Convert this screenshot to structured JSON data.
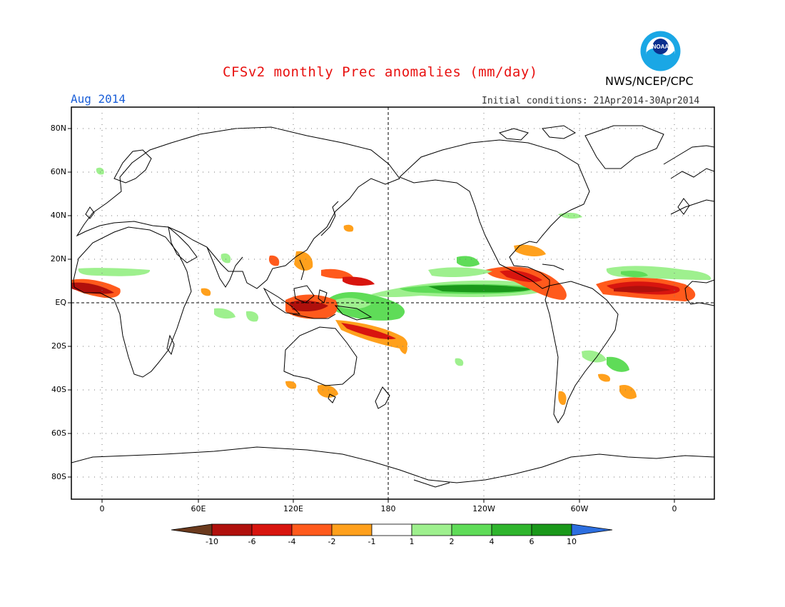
{
  "header": {
    "title": "CFSv2 monthly Prec anomalies (mm/day)",
    "agency": "NWS/NCEP/CPC",
    "logo_text": "NOAA",
    "month": "Aug 2014",
    "initial_conditions": "Initial conditions: 21Apr2014-30Apr2014"
  },
  "axes": {
    "lat_labels": [
      "80N",
      "60N",
      "40N",
      "20N",
      "EQ",
      "20S",
      "40S",
      "60S",
      "80S"
    ],
    "lon_labels": [
      "0",
      "60E",
      "120E",
      "180",
      "120W",
      "60W",
      "0"
    ]
  },
  "colorbar": {
    "labels": [
      "-10",
      "-6",
      "-4",
      "-2",
      "-1",
      "1",
      "2",
      "4",
      "6",
      "10"
    ],
    "colors": [
      "#6b3a1d",
      "#b0100c",
      "#d8150f",
      "#ff5a1c",
      "#ffa01c",
      "#ffffff",
      "#9ef08e",
      "#5fdc58",
      "#2fb52d",
      "#1a981a",
      "#2d6fe0"
    ]
  },
  "map": {
    "projection": "cylindrical equidistant",
    "lon_range": [
      -20,
      380
    ],
    "lat_range": [
      -90,
      90
    ],
    "grid": "dotted, every 20° lat / 60° lon",
    "dashed_lines": [
      "equator",
      "180"
    ],
    "colors": {
      "dry_light": "#ffa01c",
      "dry_mid": "#ff5a1c",
      "dry_strong": "#d8150f",
      "dry_extreme": "#b0100c",
      "wet_light": "#9ef08e",
      "wet_mid": "#5fdc58",
      "wet_strong": "#2fb52d",
      "wet_extreme": "#1a981a",
      "coast": "#000000"
    }
  }
}
